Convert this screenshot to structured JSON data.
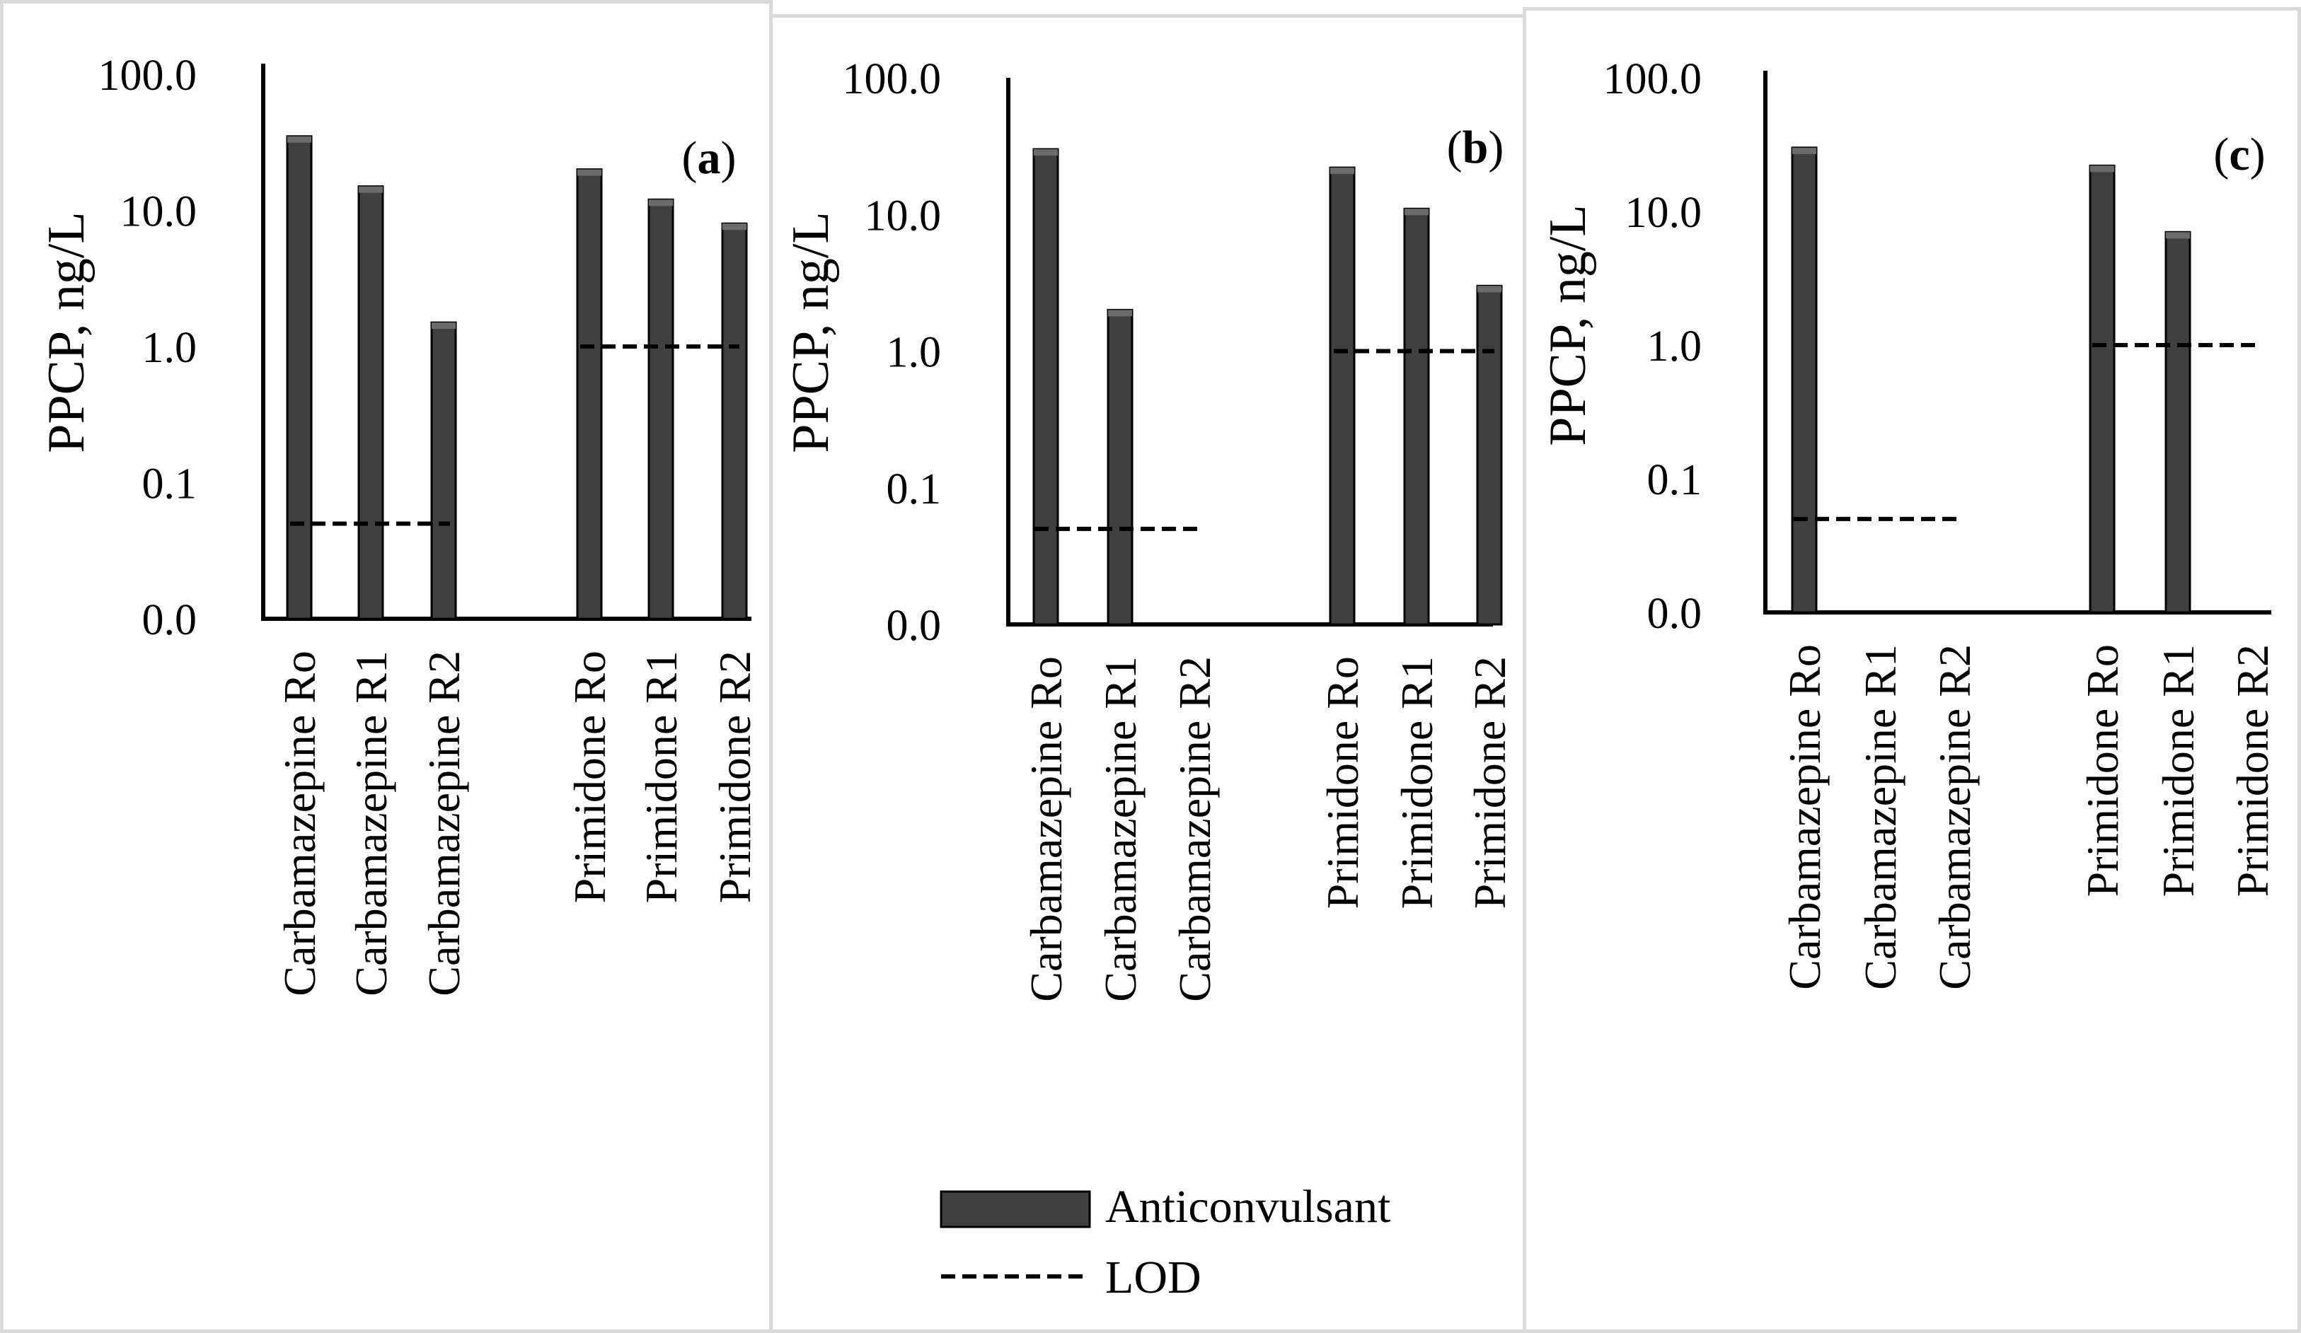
{
  "colors": {
    "bar": "#404040",
    "bar_cap": "#6b6b6b",
    "axis": "#000000",
    "lod": "#000000",
    "frame": "#d9d9d9"
  },
  "legend": {
    "bar_label": "Anticonvulsant",
    "lod_label": "LOD"
  },
  "chart_data": [
    {
      "type": "bar",
      "panel_label": "(a)",
      "ylabel": "PPCP, ng/L",
      "y_scale": "log",
      "ylim": [
        0.01,
        100
      ],
      "ytick_labels": [
        "100.0",
        "10.0",
        "1.0",
        "0.1",
        "0.0"
      ],
      "ytick_values": [
        100,
        10,
        1,
        0.1,
        0.01
      ],
      "categories": [
        "Carbamazepine Ro",
        "Carbamazepine R1",
        "Carbamazepine R2",
        "Primidone Ro",
        "Primidone R1",
        "Primidone R2"
      ],
      "values": [
        35,
        15,
        1.5,
        20,
        12,
        8
      ],
      "lod": [
        {
          "group": "Carbamazepine",
          "value": 0.05
        },
        {
          "group": "Primidone",
          "value": 1.0
        }
      ]
    },
    {
      "type": "bar",
      "panel_label": "(b)",
      "ylabel": "PPCP, ng/L",
      "y_scale": "log",
      "ylim": [
        0.01,
        100
      ],
      "ytick_labels": [
        "100.0",
        "10.0",
        "1.0",
        "0.1",
        "0.0"
      ],
      "ytick_values": [
        100,
        10,
        1,
        0.1,
        0.01
      ],
      "categories": [
        "Carbamazepine Ro",
        "Carbamazepine R1",
        "Carbamazepine R2",
        "Primidone Ro",
        "Primidone R1",
        "Primidone R2"
      ],
      "values": [
        30,
        2,
        null,
        22,
        11,
        3
      ],
      "lod": [
        {
          "group": "Carbamazepine",
          "value": 0.05
        },
        {
          "group": "Primidone",
          "value": 1.0
        }
      ]
    },
    {
      "type": "bar",
      "panel_label": "(c)",
      "ylabel": "PPCP, ng/L",
      "y_scale": "log",
      "ylim": [
        0.01,
        100
      ],
      "ytick_labels": [
        "100.0",
        "10.0",
        "1.0",
        "0.1",
        "0.0"
      ],
      "ytick_values": [
        100,
        10,
        1,
        0.1,
        0.01
      ],
      "categories": [
        "Carbamazepine Ro",
        "Carbamazepine R1",
        "Carbamazepine R2",
        "Primidone Ro",
        "Primidone R1",
        "Primidone R2"
      ],
      "values": [
        30,
        null,
        null,
        22,
        7,
        null
      ],
      "lod": [
        {
          "group": "Carbamazepine",
          "value": 0.05
        },
        {
          "group": "Primidone",
          "value": 1.0
        }
      ]
    }
  ]
}
